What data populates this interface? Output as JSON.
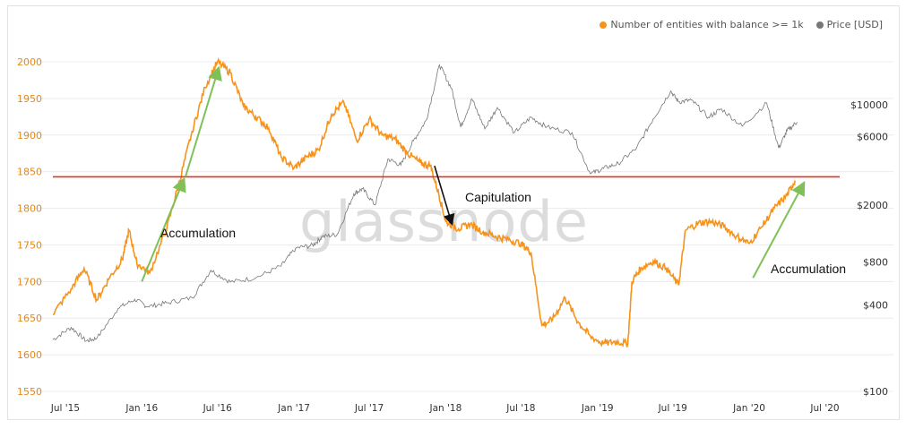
{
  "legend": {
    "series1_label": "Number of entities with balance >= 1k",
    "series2_label": "Price [USD]",
    "series1_color": "#f7931a",
    "series2_color": "#777777"
  },
  "watermark": "glassnode",
  "chart_data": {
    "type": "line",
    "title": "",
    "x_range": [
      "2015-06-01",
      "2020-07-15"
    ],
    "x_ticks": [
      "Jul '15",
      "Jan '16",
      "Jul '16",
      "Jan '17",
      "Jul '17",
      "Jan '18",
      "Jul '18",
      "Jan '19",
      "Jul '19",
      "Jan '20",
      "Jul '20"
    ],
    "y_left": {
      "label": "",
      "range": [
        1550,
        2000
      ],
      "ticks": [
        "1550",
        "1600",
        "1650",
        "1700",
        "1750",
        "1800",
        "1850",
        "1900",
        "1950",
        "2000"
      ]
    },
    "y_right": {
      "label": "",
      "scale": "log",
      "range": [
        100,
        20000
      ],
      "ticks": [
        "$100",
        "$400",
        "$800",
        "$2000",
        "$6000",
        "$10000"
      ]
    },
    "series": [
      {
        "name": "Number of entities with balance >= 1k",
        "axis": "left",
        "color": "#f7931a",
        "points": [
          [
            "2015-06-01",
            1655
          ],
          [
            "2015-07-15",
            1690
          ],
          [
            "2015-08-15",
            1718
          ],
          [
            "2015-09-15",
            1675
          ],
          [
            "2015-10-15",
            1705
          ],
          [
            "2015-11-15",
            1730
          ],
          [
            "2015-12-01",
            1770
          ],
          [
            "2015-12-20",
            1725
          ],
          [
            "2016-01-20",
            1712
          ],
          [
            "2016-03-01",
            1772
          ],
          [
            "2016-04-01",
            1838
          ],
          [
            "2016-05-01",
            1905
          ],
          [
            "2016-06-01",
            1965
          ],
          [
            "2016-07-01",
            2000
          ],
          [
            "2016-08-01",
            1985
          ],
          [
            "2016-09-01",
            1940
          ],
          [
            "2016-10-01",
            1925
          ],
          [
            "2016-11-01",
            1910
          ],
          [
            "2016-12-01",
            1870
          ],
          [
            "2017-01-01",
            1855
          ],
          [
            "2017-02-01",
            1870
          ],
          [
            "2017-03-01",
            1880
          ],
          [
            "2017-04-01",
            1928
          ],
          [
            "2017-05-01",
            1945
          ],
          [
            "2017-06-01",
            1892
          ],
          [
            "2017-07-01",
            1922
          ],
          [
            "2017-08-01",
            1900
          ],
          [
            "2017-09-01",
            1895
          ],
          [
            "2017-10-01",
            1875
          ],
          [
            "2017-11-01",
            1862
          ],
          [
            "2017-11-25",
            1858
          ],
          [
            "2017-12-15",
            1820
          ],
          [
            "2018-01-01",
            1782
          ],
          [
            "2018-02-01",
            1772
          ],
          [
            "2018-03-01",
            1778
          ],
          [
            "2018-04-01",
            1768
          ],
          [
            "2018-05-01",
            1762
          ],
          [
            "2018-06-01",
            1757
          ],
          [
            "2018-07-01",
            1752
          ],
          [
            "2018-07-25",
            1740
          ],
          [
            "2018-08-20",
            1640
          ],
          [
            "2018-09-15",
            1648
          ],
          [
            "2018-10-15",
            1678
          ],
          [
            "2018-11-15",
            1645
          ],
          [
            "2018-12-15",
            1625
          ],
          [
            "2019-01-15",
            1615
          ],
          [
            "2019-02-15",
            1618
          ],
          [
            "2019-03-15",
            1615
          ],
          [
            "2019-03-25",
            1700
          ],
          [
            "2019-04-15",
            1718
          ],
          [
            "2019-05-15",
            1728
          ],
          [
            "2019-06-15",
            1718
          ],
          [
            "2019-07-15",
            1695
          ],
          [
            "2019-08-01",
            1770
          ],
          [
            "2019-09-01",
            1780
          ],
          [
            "2019-10-01",
            1782
          ],
          [
            "2019-11-01",
            1775
          ],
          [
            "2019-12-01",
            1762
          ],
          [
            "2020-01-01",
            1752
          ],
          [
            "2020-02-01",
            1775
          ],
          [
            "2020-03-01",
            1800
          ],
          [
            "2020-04-01",
            1818
          ],
          [
            "2020-04-20",
            1838
          ]
        ]
      },
      {
        "name": "Price [USD]",
        "axis": "right",
        "color": "#777777",
        "points": [
          [
            "2015-06-01",
            230
          ],
          [
            "2015-07-15",
            280
          ],
          [
            "2015-08-20",
            225
          ],
          [
            "2015-09-15",
            235
          ],
          [
            "2015-11-05",
            380
          ],
          [
            "2015-12-15",
            440
          ],
          [
            "2016-01-15",
            390
          ],
          [
            "2016-03-01",
            415
          ],
          [
            "2016-05-01",
            450
          ],
          [
            "2016-06-15",
            700
          ],
          [
            "2016-08-01",
            580
          ],
          [
            "2016-10-01",
            620
          ],
          [
            "2016-12-01",
            750
          ],
          [
            "2017-01-05",
            1000
          ],
          [
            "2017-02-15",
            1050
          ],
          [
            "2017-03-10",
            1200
          ],
          [
            "2017-04-15",
            1250
          ],
          [
            "2017-05-25",
            2400
          ],
          [
            "2017-06-15",
            2600
          ],
          [
            "2017-07-15",
            2000
          ],
          [
            "2017-08-15",
            4200
          ],
          [
            "2017-09-15",
            3800
          ],
          [
            "2017-10-15",
            5600
          ],
          [
            "2017-11-15",
            7800
          ],
          [
            "2017-12-17",
            19000
          ],
          [
            "2018-01-15",
            13000
          ],
          [
            "2018-02-06",
            7000
          ],
          [
            "2018-03-05",
            11000
          ],
          [
            "2018-04-05",
            6800
          ],
          [
            "2018-05-05",
            9600
          ],
          [
            "2018-06-15",
            6400
          ],
          [
            "2018-07-25",
            8200
          ],
          [
            "2018-09-01",
            7000
          ],
          [
            "2018-11-01",
            6400
          ],
          [
            "2018-12-15",
            3300
          ],
          [
            "2019-01-15",
            3600
          ],
          [
            "2019-02-20",
            3900
          ],
          [
            "2019-04-05",
            5000
          ],
          [
            "2019-05-15",
            8000
          ],
          [
            "2019-06-26",
            12500
          ],
          [
            "2019-07-15",
            10500
          ],
          [
            "2019-08-15",
            10800
          ],
          [
            "2019-09-25",
            8200
          ],
          [
            "2019-10-26",
            9400
          ],
          [
            "2019-12-15",
            7100
          ],
          [
            "2020-02-12",
            10300
          ],
          [
            "2020-03-12",
            5000
          ],
          [
            "2020-04-01",
            6600
          ],
          [
            "2020-04-25",
            7600
          ]
        ]
      }
    ],
    "reference_line": {
      "axis": "left",
      "value": 1843,
      "color": "#e8341c"
    },
    "annotations": [
      {
        "text": "Accumulation",
        "color": "#7fc058",
        "from": [
          "2016-01-01",
          1700
        ],
        "to": [
          "2016-04-10",
          1838
        ]
      },
      {
        "text": "Accumulation",
        "color": "#7fc058",
        "from": [
          "2016-04-15",
          1843
        ],
        "to": [
          "2016-07-03",
          1990
        ]
      },
      {
        "text": "Capitulation",
        "color": "#111111",
        "from": [
          "2017-12-05",
          1858
        ],
        "to": [
          "2018-01-15",
          1780
        ]
      },
      {
        "text": "Accumulation",
        "color": "#7fc058",
        "from": [
          "2020-01-10",
          1705
        ],
        "to": [
          "2020-05-10",
          1833
        ]
      }
    ]
  }
}
